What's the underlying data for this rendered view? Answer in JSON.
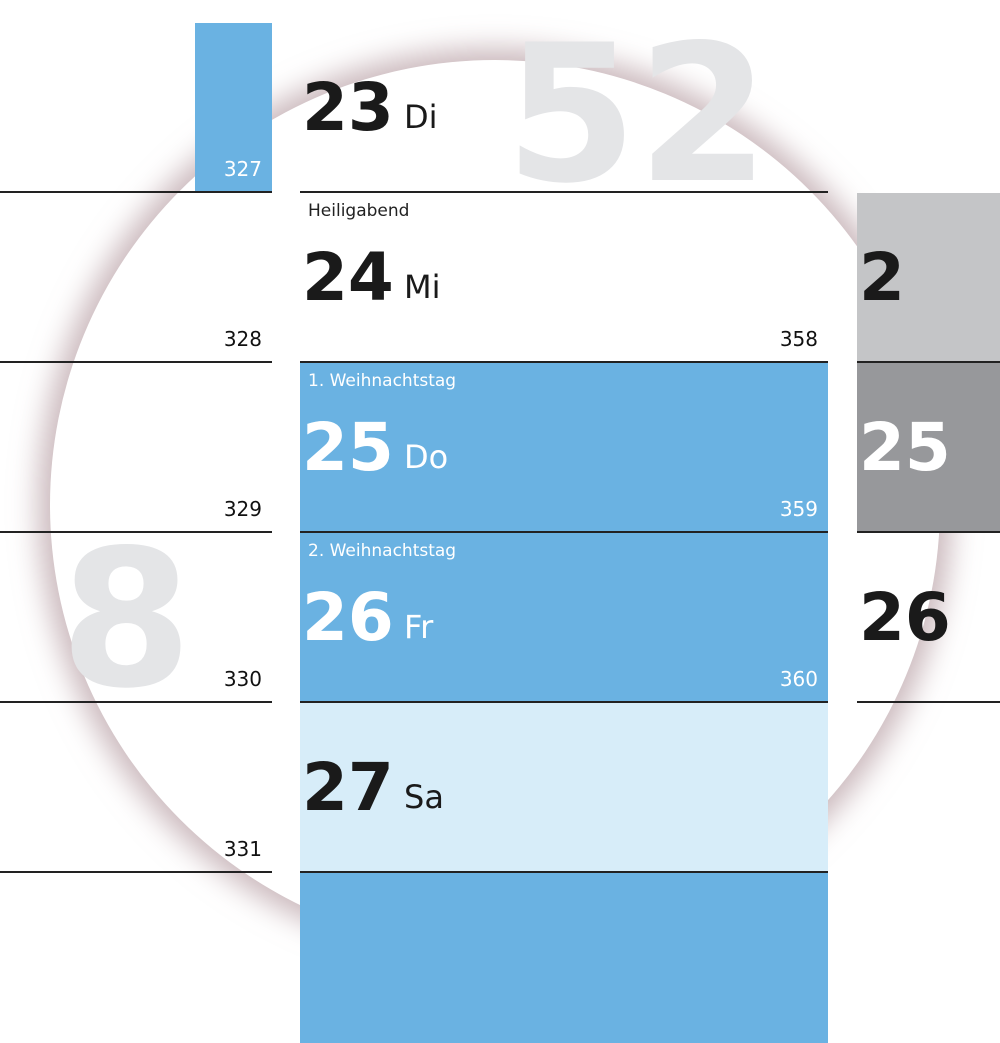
{
  "colors": {
    "holiday_blue": "#6ab2e2",
    "saturday_light_blue": "#d7edf9",
    "gray": "#c4c5c7",
    "dark_gray": "#97989b",
    "week_number": "#e4e5e7"
  },
  "week_numbers": {
    "main": "52",
    "left": "8"
  },
  "left_column": [
    {
      "day_of_year": "327",
      "highlight": "blue"
    },
    {
      "day_of_year": "328"
    },
    {
      "day_of_year": "329"
    },
    {
      "day_of_year": "330"
    },
    {
      "day_of_year": "331"
    }
  ],
  "main_column": [
    {
      "day": "23",
      "weekday": "Di",
      "holiday": "",
      "day_of_year": ""
    },
    {
      "day": "24",
      "weekday": "Mi",
      "holiday": "Heiligabend",
      "day_of_year": "358"
    },
    {
      "day": "25",
      "weekday": "Do",
      "holiday": "1. Weihnachtstag",
      "day_of_year": "359"
    },
    {
      "day": "26",
      "weekday": "Fr",
      "holiday": "2. Weihnachtstag",
      "day_of_year": "360"
    },
    {
      "day": "27",
      "weekday": "Sa",
      "holiday": "",
      "day_of_year": ""
    }
  ],
  "right_column": [
    {
      "day": "2"
    },
    {
      "day": "25"
    },
    {
      "day": "26"
    }
  ]
}
